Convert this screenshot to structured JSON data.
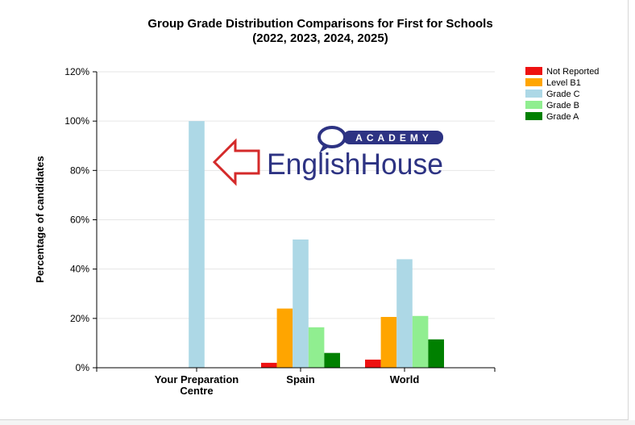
{
  "chart_data": {
    "type": "bar",
    "title": "Group Grade Distribution Comparisons for First for Schools",
    "subtitle": "(2022, 2023, 2024, 2025)",
    "ylabel": "Percentage of candidates",
    "xlabel": "",
    "ylim": [
      0,
      120
    ],
    "yticks": [
      "0%",
      "20%",
      "40%",
      "60%",
      "80%",
      "100%",
      "120%"
    ],
    "ytick_values": [
      0,
      20,
      40,
      60,
      80,
      100,
      120
    ],
    "grid": true,
    "legend_position": "top-right",
    "categories": [
      "Your Preparation Centre",
      "Spain",
      "World"
    ],
    "category_lines": [
      [
        "Your Preparation",
        "Centre"
      ],
      [
        "Spain"
      ],
      [
        "World"
      ]
    ],
    "series": [
      {
        "name": "Not Reported",
        "color": "#ee1111",
        "values": [
          0,
          2,
          3.3
        ]
      },
      {
        "name": "Level B1",
        "color": "#ffa500",
        "values": [
          0,
          24,
          20.6
        ]
      },
      {
        "name": "Grade C",
        "color": "#add8e6",
        "values": [
          100,
          52,
          44
        ]
      },
      {
        "name": "Grade B",
        "color": "#90ee90",
        "values": [
          0,
          16.4,
          21
        ]
      },
      {
        "name": "Grade A",
        "color": "#008000",
        "values": [
          0,
          6,
          11.5
        ]
      }
    ]
  },
  "watermark": {
    "top_text": "ACADEMY",
    "main_text": "EnglishHouse",
    "color": "#2d3383",
    "arrow_color": "#d42a2a"
  }
}
